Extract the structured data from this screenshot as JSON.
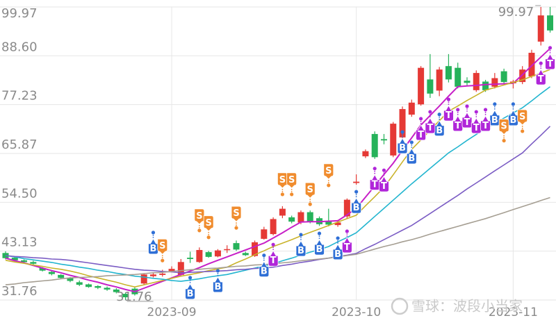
{
  "chart_data": {
    "type": "candlestick",
    "categories": [
      null,
      null,
      null,
      null,
      null,
      null,
      null,
      null,
      null,
      null,
      null,
      null,
      null,
      null,
      null,
      null,
      null,
      null,
      "2023-09",
      null,
      null,
      null,
      null,
      null,
      null,
      null,
      null,
      null,
      null,
      null,
      null,
      null,
      null,
      null,
      null,
      null,
      null,
      null,
      "2023-10",
      null,
      null,
      null,
      null,
      null,
      null,
      null,
      null,
      null,
      null,
      null,
      null,
      null,
      null,
      null,
      null,
      "2023-11",
      null,
      null,
      null,
      null
    ],
    "open": [
      42.7,
      41.6,
      41.0,
      40.6,
      39.2,
      38.3,
      37.6,
      36.9,
      35.9,
      35.4,
      35.0,
      34.6,
      34.2,
      33.2,
      34.4,
      35.6,
      37.3,
      37.6,
      38.5,
      37.6,
      41.6,
      40.6,
      42.9,
      41.9,
      43.4,
      45.0,
      42.7,
      42.0,
      46.0,
      47.1,
      51.4,
      51.0,
      49.8,
      52.2,
      50.8,
      50.0,
      49.2,
      51.2,
      59.0,
      65.2,
      70.4,
      69.2,
      65.4,
      69.6,
      74.9,
      77.3,
      83.1,
      80.5,
      86.2,
      85.8,
      82.8,
      80.6,
      82.6,
      81.4,
      85.0,
      82.2,
      82.5,
      83.8,
      91.9,
      98.0
    ],
    "close": [
      41.5,
      41.0,
      40.6,
      40.2,
      38.6,
      37.8,
      36.9,
      36.2,
      35.3,
      34.8,
      34.6,
      34.2,
      33.6,
      32.4,
      33.1,
      37.7,
      37.7,
      37.9,
      39.0,
      40.6,
      41.3,
      43.4,
      41.8,
      43.3,
      43.6,
      43.5,
      42.2,
      45.2,
      48.2,
      50.6,
      53.0,
      50.0,
      52.2,
      50.0,
      49.4,
      49.3,
      49.8,
      55.1,
      59.3,
      66.4,
      65.0,
      68.9,
      72.8,
      76.2,
      77.7,
      85.8,
      79.8,
      85.4,
      83.1,
      81.4,
      82.3,
      84.6,
      80.6,
      83.4,
      82.5,
      82.6,
      85.4,
      89.3,
      98.0,
      94.5
    ],
    "high": [
      43.1,
      41.9,
      41.2,
      40.9,
      39.4,
      38.6,
      37.8,
      37.1,
      36.3,
      35.6,
      35.2,
      34.9,
      34.5,
      33.5,
      34.7,
      38.0,
      38.1,
      38.8,
      39.6,
      41.3,
      43.0,
      44.0,
      43.2,
      43.6,
      44.5,
      45.6,
      43.0,
      45.6,
      48.8,
      51.0,
      53.6,
      51.4,
      52.6,
      52.6,
      51.2,
      53.0,
      50.4,
      55.4,
      61.0,
      66.8,
      71.0,
      70.4,
      73.2,
      76.8,
      78.4,
      86.2,
      89.0,
      86.0,
      89.0,
      87.0,
      83.6,
      85.2,
      83.0,
      84.6,
      85.6,
      83.0,
      86.2,
      90.0,
      99.97,
      99.97
    ],
    "low": [
      41.2,
      40.8,
      40.4,
      40.0,
      38.4,
      37.5,
      36.6,
      35.9,
      35.0,
      34.6,
      34.3,
      33.9,
      33.3,
      31.76,
      32.8,
      35.3,
      37.0,
      37.2,
      38.2,
      37.4,
      40.4,
      40.4,
      41.6,
      41.7,
      42.7,
      43.2,
      42.0,
      41.8,
      45.8,
      46.8,
      50.8,
      49.6,
      49.4,
      49.6,
      49.0,
      48.9,
      48.8,
      50.8,
      58.6,
      64.8,
      64.6,
      68.0,
      65.0,
      69.2,
      74.4,
      77.0,
      78.8,
      79.2,
      82.4,
      81.0,
      81.6,
      80.2,
      80.2,
      81.0,
      82.0,
      81.0,
      82.0,
      83.4,
      91.0,
      94.0
    ],
    "up_color": "#e53935",
    "down_color": "#26b25a",
    "series": [
      {
        "color": "#c71fc7",
        "values": [
          41.5,
          40.9,
          40.4,
          39.8,
          39.2,
          38.6,
          38.1,
          37.5,
          37.0,
          36.4,
          35.9,
          35.3,
          34.8,
          34.2,
          33.7,
          34.5,
          35.3,
          36.1,
          36.9,
          37.7,
          38.5,
          39.3,
          40.2,
          41.0,
          41.8,
          42.6,
          43.4,
          44.2,
          45.0,
          46.2,
          47.4,
          48.7,
          49.9,
          50.0,
          50.0,
          50.1,
          50.2,
          51.6,
          53.1,
          55.7,
          58.3,
          61.0,
          63.6,
          66.6,
          69.5,
          72.5,
          74.7,
          76.9,
          79.2,
          81.4,
          81.6,
          81.7,
          81.9,
          82.0,
          82.1,
          82.2,
          84.2,
          86.3,
          88.3,
          90.3
        ]
      },
      {
        "color": "#c9b32a",
        "values": [
          41.0,
          40.6,
          40.3,
          39.9,
          39.6,
          39.2,
          38.9,
          38.5,
          38.0,
          37.4,
          36.9,
          36.4,
          35.9,
          35.3,
          34.8,
          35.3,
          35.8,
          36.3,
          36.8,
          37.3,
          37.7,
          38.1,
          38.6,
          39.0,
          39.4,
          40.4,
          41.3,
          42.3,
          43.2,
          44.2,
          45.0,
          45.8,
          46.7,
          47.5,
          48.3,
          49.1,
          49.9,
          50.7,
          51.5,
          53.7,
          55.8,
          58.0,
          60.9,
          63.9,
          66.8,
          69.0,
          71.3,
          73.5,
          75.7,
          76.9,
          78.2,
          79.4,
          80.6,
          81.2,
          81.8,
          82.4,
          83.0,
          83.8,
          84.6,
          85.4
        ]
      },
      {
        "color": "#22b5cf",
        "values": [
          42.1,
          41.8,
          41.4,
          41.1,
          40.8,
          40.5,
          40.1,
          39.8,
          39.4,
          39.1,
          38.7,
          38.4,
          38.0,
          37.7,
          37.3,
          37.1,
          36.8,
          36.6,
          36.3,
          36.1,
          36.4,
          36.7,
          37.1,
          37.4,
          37.7,
          38.2,
          38.7,
          39.2,
          39.7,
          40.2,
          40.9,
          41.5,
          42.2,
          42.9,
          43.5,
          44.2,
          45.3,
          46.3,
          47.4,
          49.3,
          51.2,
          53.1,
          55.0,
          56.9,
          58.8,
          60.6,
          62.4,
          64.2,
          66.0,
          67.4,
          68.9,
          70.3,
          71.7,
          72.9,
          74.1,
          75.3,
          76.5,
          78.1,
          79.8,
          81.4
        ]
      },
      {
        "color": "#7b5cc4",
        "values": [
          42.1,
          41.9,
          41.8,
          41.6,
          41.5,
          41.3,
          41.2,
          41.0,
          40.7,
          40.4,
          40.1,
          39.8,
          39.5,
          39.2,
          38.9,
          38.7,
          38.6,
          38.4,
          38.3,
          38.1,
          38.2,
          38.3,
          38.4,
          38.5,
          38.6,
          38.8,
          38.9,
          39.1,
          39.2,
          39.4,
          39.8,
          40.1,
          40.5,
          40.8,
          41.2,
          41.5,
          41.9,
          42.2,
          42.6,
          43.7,
          44.7,
          45.8,
          46.9,
          48.0,
          49.1,
          50.5,
          51.9,
          53.3,
          54.7,
          56.1,
          57.6,
          59.0,
          60.4,
          61.8,
          63.2,
          64.6,
          66.0,
          68.1,
          70.1,
          72.2
        ]
      },
      {
        "color": "#a59e92",
        "values": [
          35.3,
          35.5,
          35.8,
          36.0,
          36.2,
          36.4,
          36.7,
          36.9,
          37.0,
          37.1,
          37.2,
          37.4,
          37.5,
          37.6,
          37.7,
          37.9,
          38.1,
          38.2,
          38.4,
          38.6,
          38.8,
          38.9,
          39.1,
          39.2,
          39.4,
          39.6,
          39.7,
          39.9,
          40.0,
          40.2,
          40.4,
          40.6,
          40.9,
          41.1,
          41.3,
          41.5,
          41.8,
          42.1,
          42.4,
          43.0,
          43.6,
          44.2,
          44.7,
          45.3,
          45.8,
          46.4,
          47.1,
          47.7,
          48.3,
          48.9,
          49.5,
          50.1,
          50.7,
          51.4,
          52.1,
          52.8,
          53.5,
          54.2,
          54.9,
          55.6
        ]
      }
    ],
    "signals": [
      {
        "name": "B",
        "color": "#2f6fd6",
        "values": [
          null,
          null,
          null,
          null,
          null,
          null,
          null,
          null,
          null,
          null,
          null,
          null,
          null,
          null,
          null,
          null,
          43.9,
          null,
          null,
          null,
          33.4,
          null,
          null,
          35.0,
          null,
          null,
          null,
          null,
          38.6,
          null,
          null,
          null,
          43.4,
          null,
          43.7,
          null,
          42.6,
          null,
          53.4,
          null,
          null,
          null,
          null,
          67.3,
          64.9,
          null,
          null,
          71.4,
          null,
          null,
          null,
          null,
          null,
          73.8,
          null,
          73.8,
          null,
          null,
          null,
          null
        ]
      },
      {
        "name": "S",
        "color": "#f08c2e",
        "values": [
          null,
          null,
          null,
          null,
          null,
          null,
          null,
          null,
          null,
          null,
          null,
          null,
          null,
          null,
          null,
          null,
          null,
          44.5,
          null,
          null,
          null,
          51.5,
          49.9,
          null,
          null,
          52.1,
          null,
          null,
          null,
          null,
          59.9,
          59.9,
          null,
          57.6,
          null,
          62.0,
          null,
          null,
          null,
          null,
          null,
          null,
          null,
          null,
          null,
          null,
          null,
          null,
          null,
          null,
          null,
          null,
          null,
          null,
          72.4,
          null,
          74.6,
          null,
          null,
          null
        ]
      },
      {
        "name": "T",
        "color": "#b026d9",
        "values": [
          null,
          null,
          null,
          null,
          null,
          null,
          null,
          null,
          null,
          null,
          null,
          null,
          null,
          null,
          null,
          null,
          null,
          null,
          null,
          null,
          null,
          null,
          null,
          null,
          null,
          null,
          null,
          null,
          null,
          41.1,
          null,
          null,
          null,
          null,
          null,
          null,
          null,
          44.2,
          null,
          null,
          58.8,
          58.4,
          null,
          null,
          null,
          70.4,
          72.0,
          null,
          74.9,
          72.5,
          73.3,
          72.0,
          72.5,
          null,
          null,
          null,
          null,
          null,
          83.3,
          86.9
        ]
      }
    ],
    "annotations": [
      {
        "value": 99.97,
        "label": "99.97"
      },
      {
        "value": 31.76,
        "label": "31.76"
      }
    ],
    "ylim": [
      31.76,
      99.97
    ],
    "yticks": [
      31.76,
      {
        "value": 43.13,
        "label": "43.13"
      },
      {
        "value": 54.5,
        "label": "54.50"
      },
      65.87,
      77.23,
      {
        "value": 88.6,
        "label": "88.60"
      },
      99.97
    ],
    "grid": true,
    "watermark": "雪球：波段小当家"
  }
}
